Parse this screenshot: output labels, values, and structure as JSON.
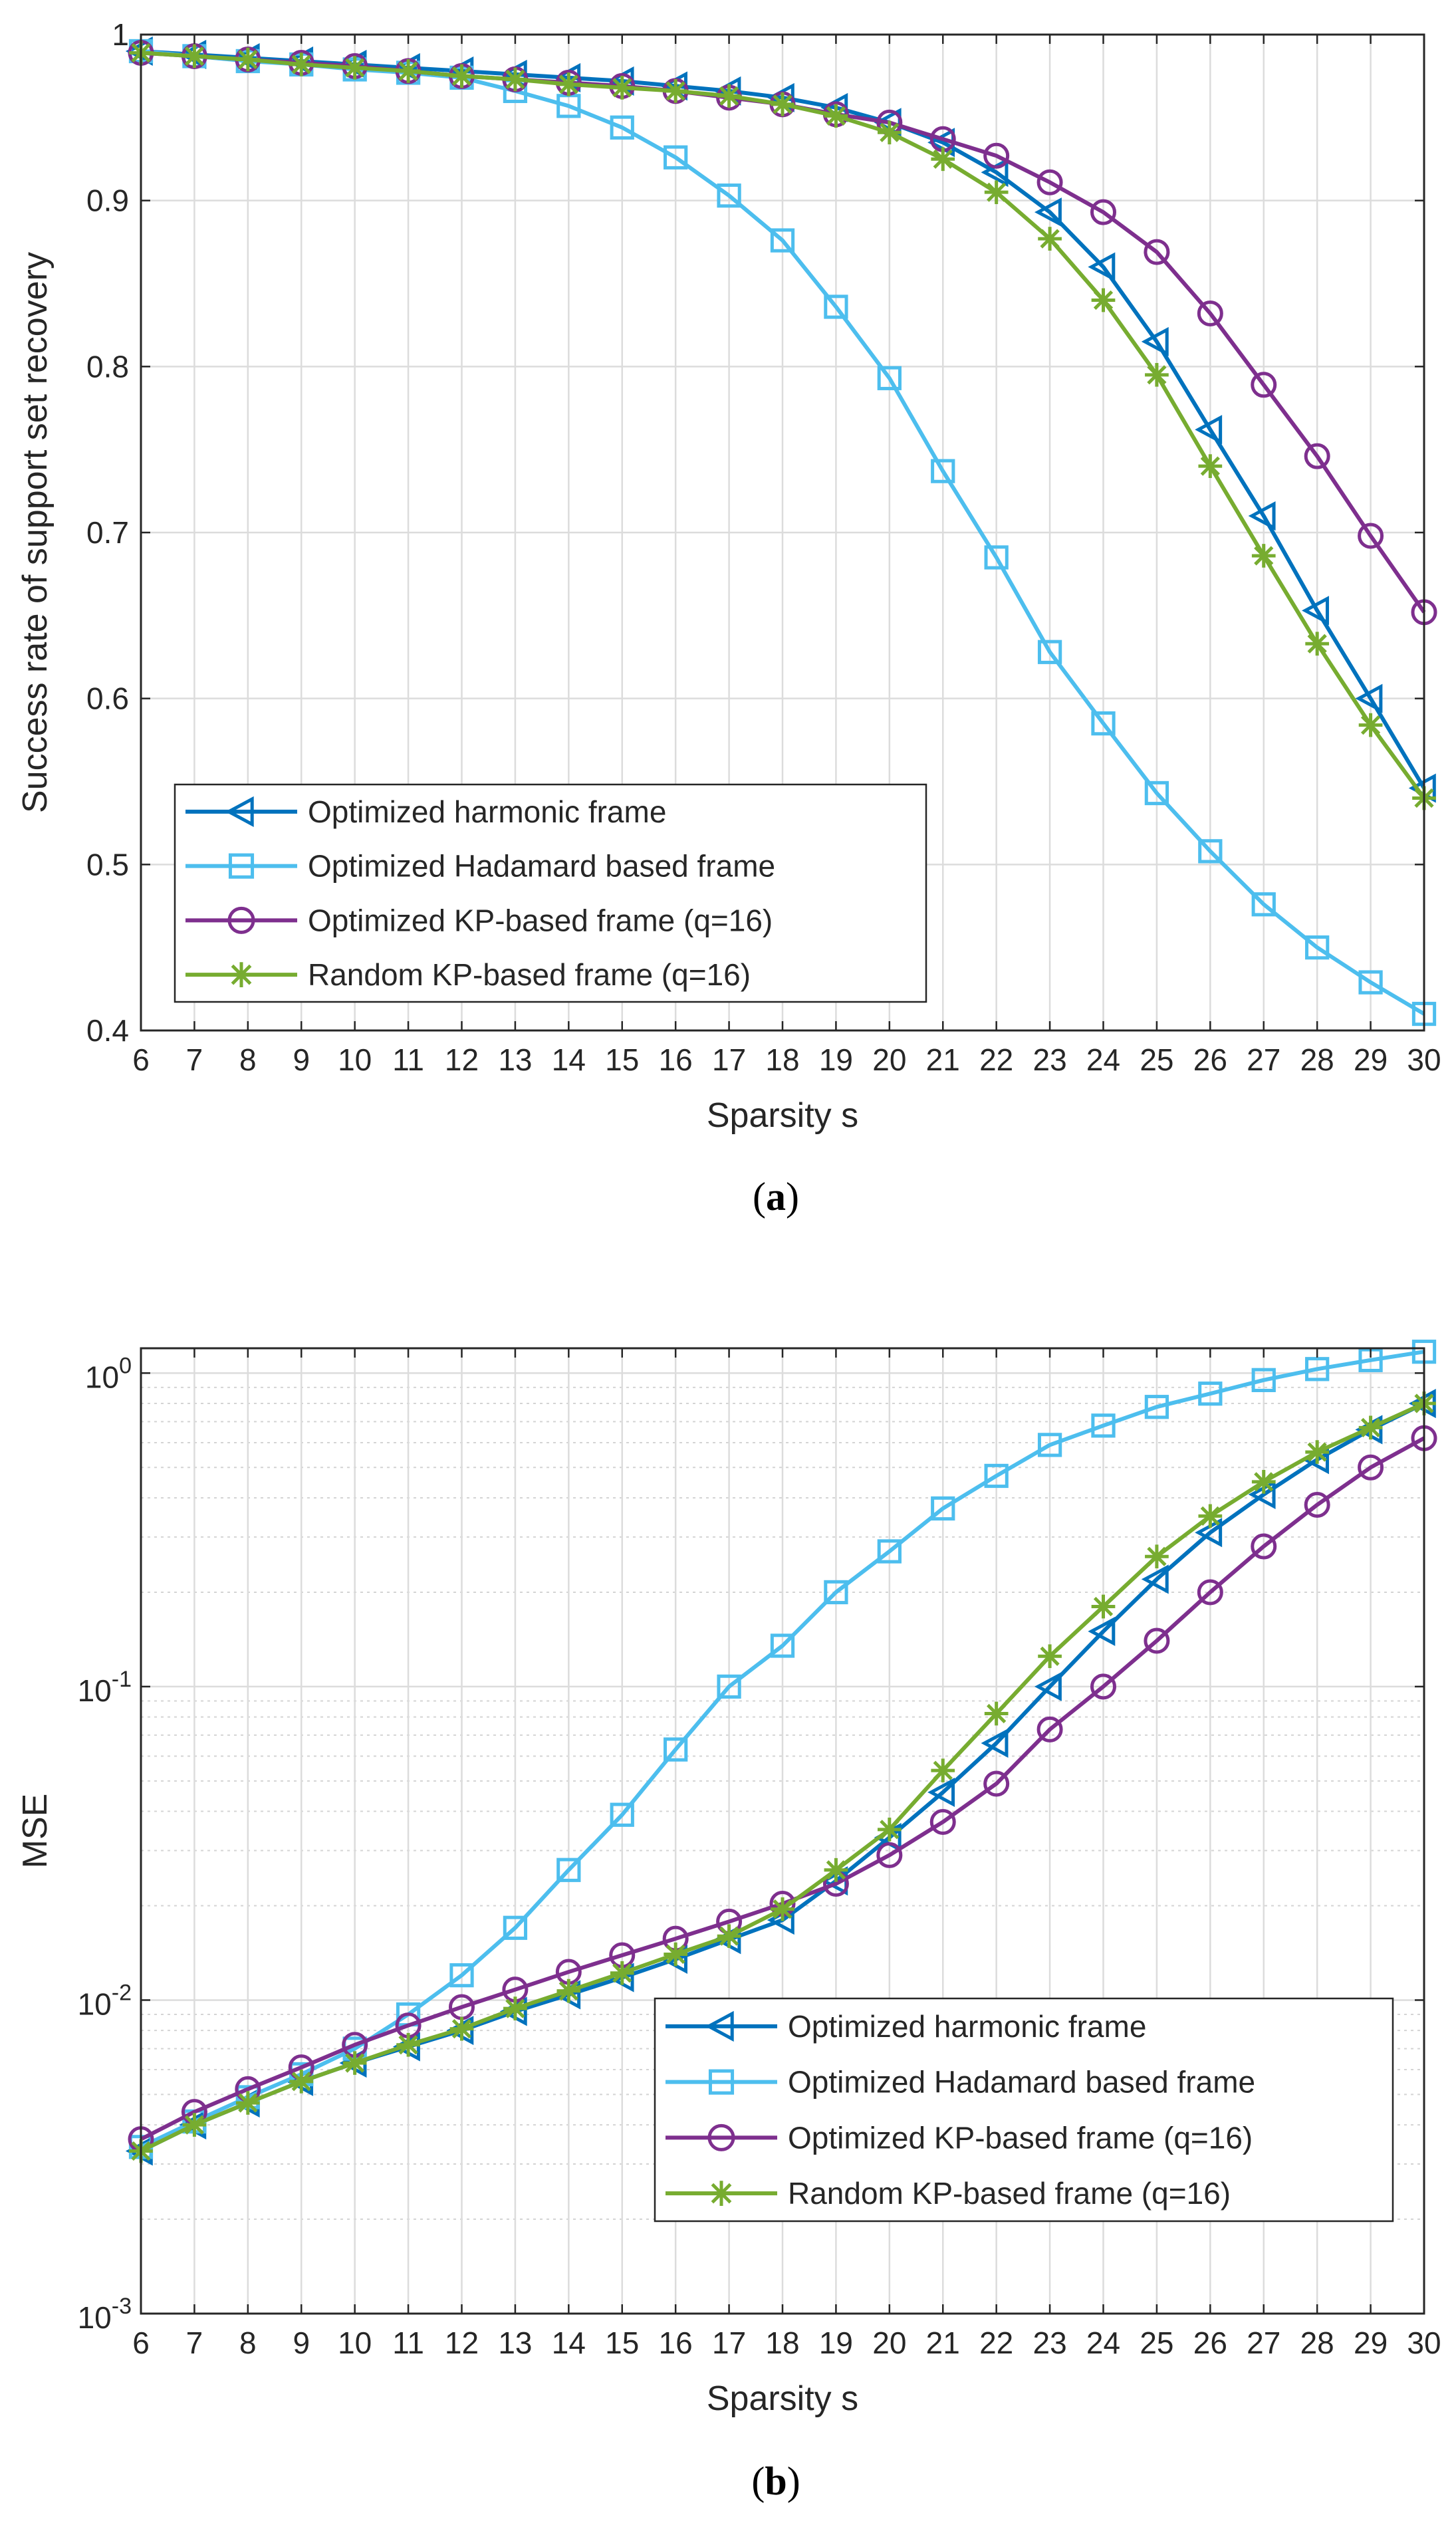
{
  "chart_data": [
    {
      "type": "line",
      "panel": "a",
      "caption": "(a)",
      "xlabel": "Sparsity s",
      "ylabel": "Success rate of support set recovery",
      "xlim": [
        6,
        30
      ],
      "ylim": [
        0.4,
        1
      ],
      "yscale": "linear",
      "x": [
        6,
        7,
        8,
        9,
        10,
        11,
        12,
        13,
        14,
        15,
        16,
        17,
        18,
        19,
        20,
        21,
        22,
        23,
        24,
        25,
        26,
        27,
        28,
        29,
        30
      ],
      "xticks": [
        "6",
        "7",
        "8",
        "9",
        "10",
        "11",
        "12",
        "13",
        "14",
        "15",
        "16",
        "17",
        "18",
        "19",
        "20",
        "21",
        "22",
        "23",
        "24",
        "25",
        "26",
        "27",
        "28",
        "29",
        "30"
      ],
      "yticks": [
        {
          "v": 0.4,
          "label": "0.4"
        },
        {
          "v": 0.5,
          "label": "0.5"
        },
        {
          "v": 0.6,
          "label": "0.6"
        },
        {
          "v": 0.7,
          "label": "0.7"
        },
        {
          "v": 0.8,
          "label": "0.8"
        },
        {
          "v": 0.9,
          "label": "0.9"
        },
        {
          "v": 1,
          "label": "1"
        }
      ],
      "legend_position": "bottom-left",
      "series": [
        {
          "name": "Optimized harmonic frame",
          "color": "#0072BD",
          "marker": "triangle-left",
          "values": [
            0.99,
            0.988,
            0.986,
            0.984,
            0.982,
            0.98,
            0.978,
            0.976,
            0.974,
            0.972,
            0.969,
            0.966,
            0.962,
            0.956,
            0.947,
            0.935,
            0.917,
            0.893,
            0.86,
            0.815,
            0.762,
            0.71,
            0.653,
            0.6,
            0.546
          ]
        },
        {
          "name": "Optimized Hadamard based frame",
          "color": "#4DBEEE",
          "marker": "square",
          "values": [
            0.99,
            0.987,
            0.984,
            0.982,
            0.979,
            0.977,
            0.974,
            0.966,
            0.957,
            0.944,
            0.926,
            0.903,
            0.876,
            0.836,
            0.793,
            0.737,
            0.685,
            0.628,
            0.585,
            0.543,
            0.508,
            0.476,
            0.45,
            0.429,
            0.41
          ]
        },
        {
          "name": "Optimized KP-based frame (q=16)",
          "color": "#7E2F8E",
          "marker": "circle",
          "values": [
            0.989,
            0.987,
            0.985,
            0.983,
            0.981,
            0.978,
            0.975,
            0.973,
            0.971,
            0.969,
            0.966,
            0.962,
            0.958,
            0.952,
            0.947,
            0.937,
            0.927,
            0.911,
            0.893,
            0.869,
            0.832,
            0.789,
            0.746,
            0.698,
            0.652
          ]
        },
        {
          "name": "Random KP-based frame (q=16)",
          "color": "#77AC30",
          "marker": "asterisk",
          "values": [
            0.989,
            0.987,
            0.985,
            0.982,
            0.98,
            0.978,
            0.975,
            0.973,
            0.97,
            0.968,
            0.966,
            0.963,
            0.958,
            0.951,
            0.941,
            0.925,
            0.905,
            0.877,
            0.84,
            0.795,
            0.74,
            0.686,
            0.633,
            0.584,
            0.54
          ]
        }
      ]
    },
    {
      "type": "line",
      "panel": "b",
      "caption": "(b)",
      "xlabel": "Sparsity s",
      "ylabel": "MSE",
      "xlim": [
        6,
        30
      ],
      "ylim": [
        0.001,
        1.2
      ],
      "yscale": "log",
      "x": [
        6,
        7,
        8,
        9,
        10,
        11,
        12,
        13,
        14,
        15,
        16,
        17,
        18,
        19,
        20,
        21,
        22,
        23,
        24,
        25,
        26,
        27,
        28,
        29,
        30
      ],
      "xticks": [
        "6",
        "7",
        "8",
        "9",
        "10",
        "11",
        "12",
        "13",
        "14",
        "15",
        "16",
        "17",
        "18",
        "19",
        "20",
        "21",
        "22",
        "23",
        "24",
        "25",
        "26",
        "27",
        "28",
        "29",
        "30"
      ],
      "yticks": [
        {
          "exp": -3,
          "base": "10",
          "sup": "-3"
        },
        {
          "exp": -2,
          "base": "10",
          "sup": "-2"
        },
        {
          "exp": -1,
          "base": "10",
          "sup": "-1"
        },
        {
          "exp": 0,
          "base": "10",
          "sup": "0"
        }
      ],
      "legend_position": "bottom-right",
      "series": [
        {
          "name": "Optimized harmonic frame",
          "color": "#0072BD",
          "marker": "triangle-left",
          "values": [
            0.0033,
            0.004,
            0.0047,
            0.0055,
            0.0063,
            0.0071,
            0.008,
            0.0092,
            0.0104,
            0.0118,
            0.0135,
            0.0156,
            0.018,
            0.024,
            0.033,
            0.046,
            0.066,
            0.1,
            0.15,
            0.22,
            0.31,
            0.41,
            0.53,
            0.66,
            0.8
          ]
        },
        {
          "name": "Optimized Hadamard based frame",
          "color": "#4DBEEE",
          "marker": "square",
          "values": [
            0.0034,
            0.0041,
            0.0049,
            0.0058,
            0.007,
            0.009,
            0.012,
            0.017,
            0.026,
            0.039,
            0.063,
            0.1,
            0.135,
            0.2,
            0.27,
            0.37,
            0.47,
            0.59,
            0.68,
            0.78,
            0.86,
            0.95,
            1.03,
            1.1,
            1.17
          ]
        },
        {
          "name": "Optimized KP-based frame (q=16)",
          "color": "#7E2F8E",
          "marker": "circle",
          "values": [
            0.0036,
            0.0044,
            0.0052,
            0.0061,
            0.0072,
            0.0083,
            0.0095,
            0.0108,
            0.0123,
            0.0139,
            0.0157,
            0.0178,
            0.0203,
            0.0235,
            0.029,
            0.037,
            0.049,
            0.073,
            0.1,
            0.14,
            0.2,
            0.28,
            0.38,
            0.5,
            0.62
          ]
        },
        {
          "name": "Random KP-based frame (q=16)",
          "color": "#77AC30",
          "marker": "asterisk",
          "values": [
            0.0033,
            0.004,
            0.0047,
            0.0055,
            0.0063,
            0.0072,
            0.0081,
            0.0094,
            0.0107,
            0.0122,
            0.014,
            0.016,
            0.0195,
            0.026,
            0.035,
            0.054,
            0.082,
            0.125,
            0.18,
            0.26,
            0.35,
            0.45,
            0.56,
            0.67,
            0.8
          ]
        }
      ]
    }
  ]
}
